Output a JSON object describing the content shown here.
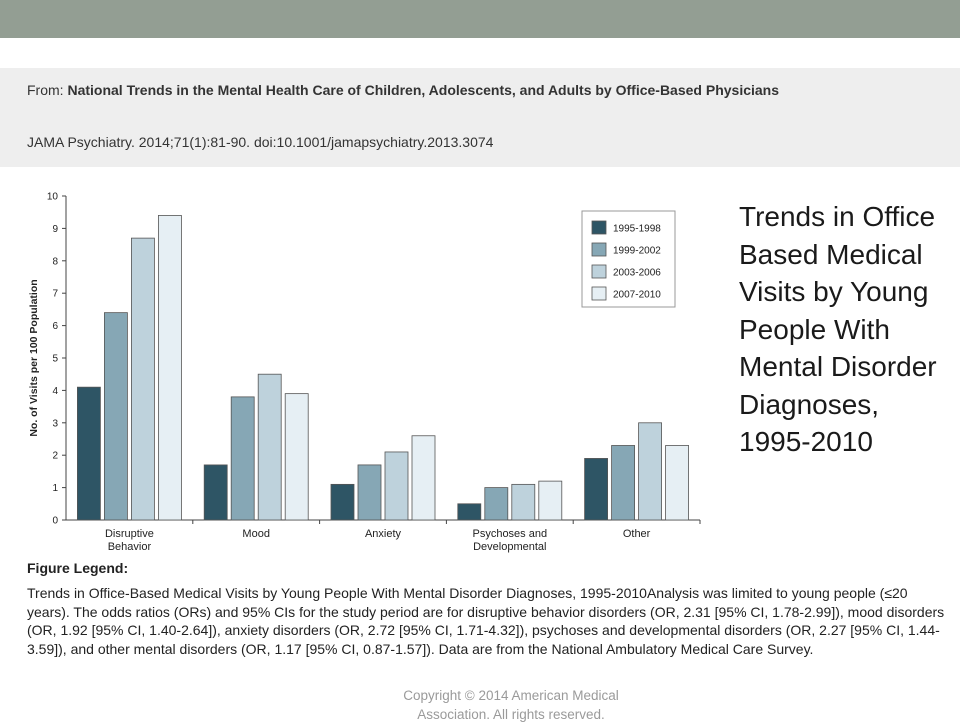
{
  "header": {
    "from_prefix": "From:",
    "article_title": "National Trends in the Mental Health Care of Children, Adolescents, and Adults by Office-Based Physicians",
    "citation": "JAMA Psychiatry. 2014;71(1):81-90. doi:10.1001/jamapsychiatry.2013.3074"
  },
  "side_title": "Trends in Office Based Medical Visits by Young People With Mental Disorder Diagnoses, 1995-2010",
  "figure_legend": {
    "label": "Figure Legend:",
    "text": "Trends in Office-Based Medical Visits by Young People With Mental Disorder Diagnoses, 1995-2010Analysis was limited to young people (≤20 years). The odds ratios (ORs) and 95% CIs for the study period are for disruptive behavior disorders (OR, 2.31 [95% CI, 1.78-2.99]), mood disorders (OR, 1.92 [95% CI, 1.40-2.64]), anxiety disorders (OR, 2.72 [95% CI, 1.71-4.32]), psychoses and developmental disorders (OR, 2.27 [95% CI, 1.44-3.59]), and other mental disorders (OR, 1.17 [95% CI, 0.87-1.57]). Data are from the National Ambulatory Medical Care Survey."
  },
  "copyright": "Copyright © 2014 American Medical Association. All rights reserved.",
  "colors": {
    "top_band": "#939e93",
    "header_bg": "#eeeeee"
  },
  "chart_data": {
    "type": "bar",
    "ylabel": "No. of Visits per 100 Population",
    "xlabel": "",
    "ylim": [
      0,
      10
    ],
    "yticks": [
      0,
      1,
      2,
      3,
      4,
      5,
      6,
      7,
      8,
      9,
      10
    ],
    "grid": false,
    "legend_position": "top-right",
    "categories": [
      [
        "Disruptive",
        "Behavior"
      ],
      [
        "Mood"
      ],
      [
        "Anxiety"
      ],
      [
        "Psychoses and",
        "Developmental"
      ],
      [
        "Other"
      ]
    ],
    "series": [
      {
        "name": "1995-1998",
        "color": "#2e5565",
        "values": [
          4.1,
          1.7,
          1.1,
          0.5,
          1.9
        ]
      },
      {
        "name": "1999-2002",
        "color": "#86a7b5",
        "values": [
          6.4,
          3.8,
          1.7,
          1.0,
          2.3
        ]
      },
      {
        "name": "2003-2006",
        "color": "#bed2dc",
        "values": [
          8.7,
          4.5,
          2.1,
          1.1,
          3.0
        ]
      },
      {
        "name": "2007-2010",
        "color": "#e6eff4",
        "values": [
          9.4,
          3.9,
          2.6,
          1.2,
          2.3
        ]
      }
    ]
  }
}
